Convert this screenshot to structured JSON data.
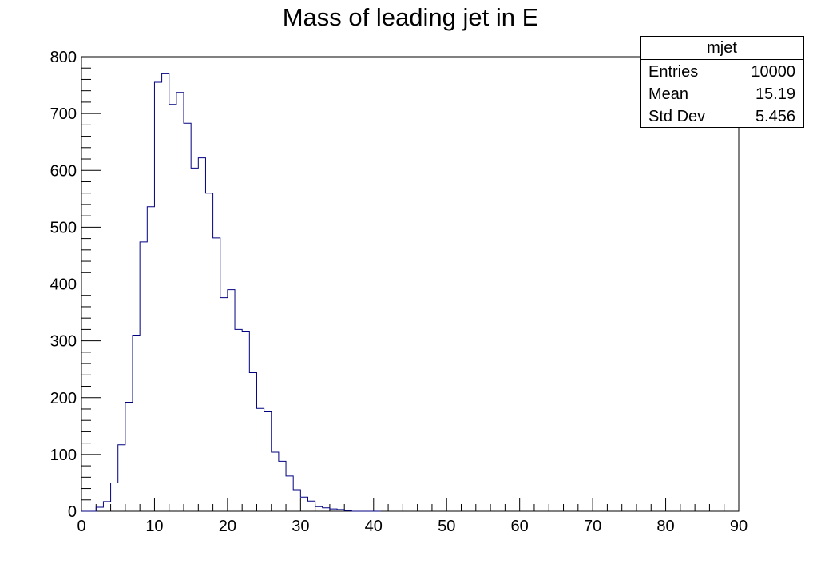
{
  "chart_data": {
    "type": "bar",
    "title": "Mass of leading jet in E",
    "xlabel": "",
    "ylabel": "",
    "xlim": [
      0,
      90
    ],
    "ylim": [
      0,
      800
    ],
    "x_ticks": [
      "0",
      "10",
      "20",
      "30",
      "40",
      "50",
      "60",
      "70",
      "80",
      "90"
    ],
    "y_ticks": [
      "0",
      "100",
      "200",
      "300",
      "400",
      "500",
      "600",
      "700",
      "800"
    ],
    "bin_width": 1,
    "bin_low_edges": [
      0,
      1,
      2,
      3,
      4,
      5,
      6,
      7,
      8,
      9,
      10,
      11,
      12,
      13,
      14,
      15,
      16,
      17,
      18,
      19,
      20,
      21,
      22,
      23,
      24,
      25,
      26,
      27,
      28,
      29,
      30,
      31,
      32,
      33,
      34,
      35,
      36,
      37,
      38,
      39,
      40
    ],
    "values": [
      0,
      0,
      7,
      17,
      50,
      117,
      192,
      310,
      474,
      536,
      755,
      770,
      716,
      737,
      683,
      604,
      622,
      560,
      481,
      376,
      390,
      320,
      317,
      244,
      181,
      175,
      104,
      88,
      62,
      38,
      25,
      18,
      8,
      6,
      4,
      3,
      1,
      0,
      0,
      0,
      0
    ],
    "line_color": "#000080",
    "legend": "none",
    "grid": false,
    "stats_box": {
      "name": "mjet",
      "rows": [
        {
          "label": "Entries",
          "value": "10000"
        },
        {
          "label": "Mean",
          "value": "15.19"
        },
        {
          "label": "Std Dev",
          "value": "5.456"
        }
      ]
    }
  }
}
